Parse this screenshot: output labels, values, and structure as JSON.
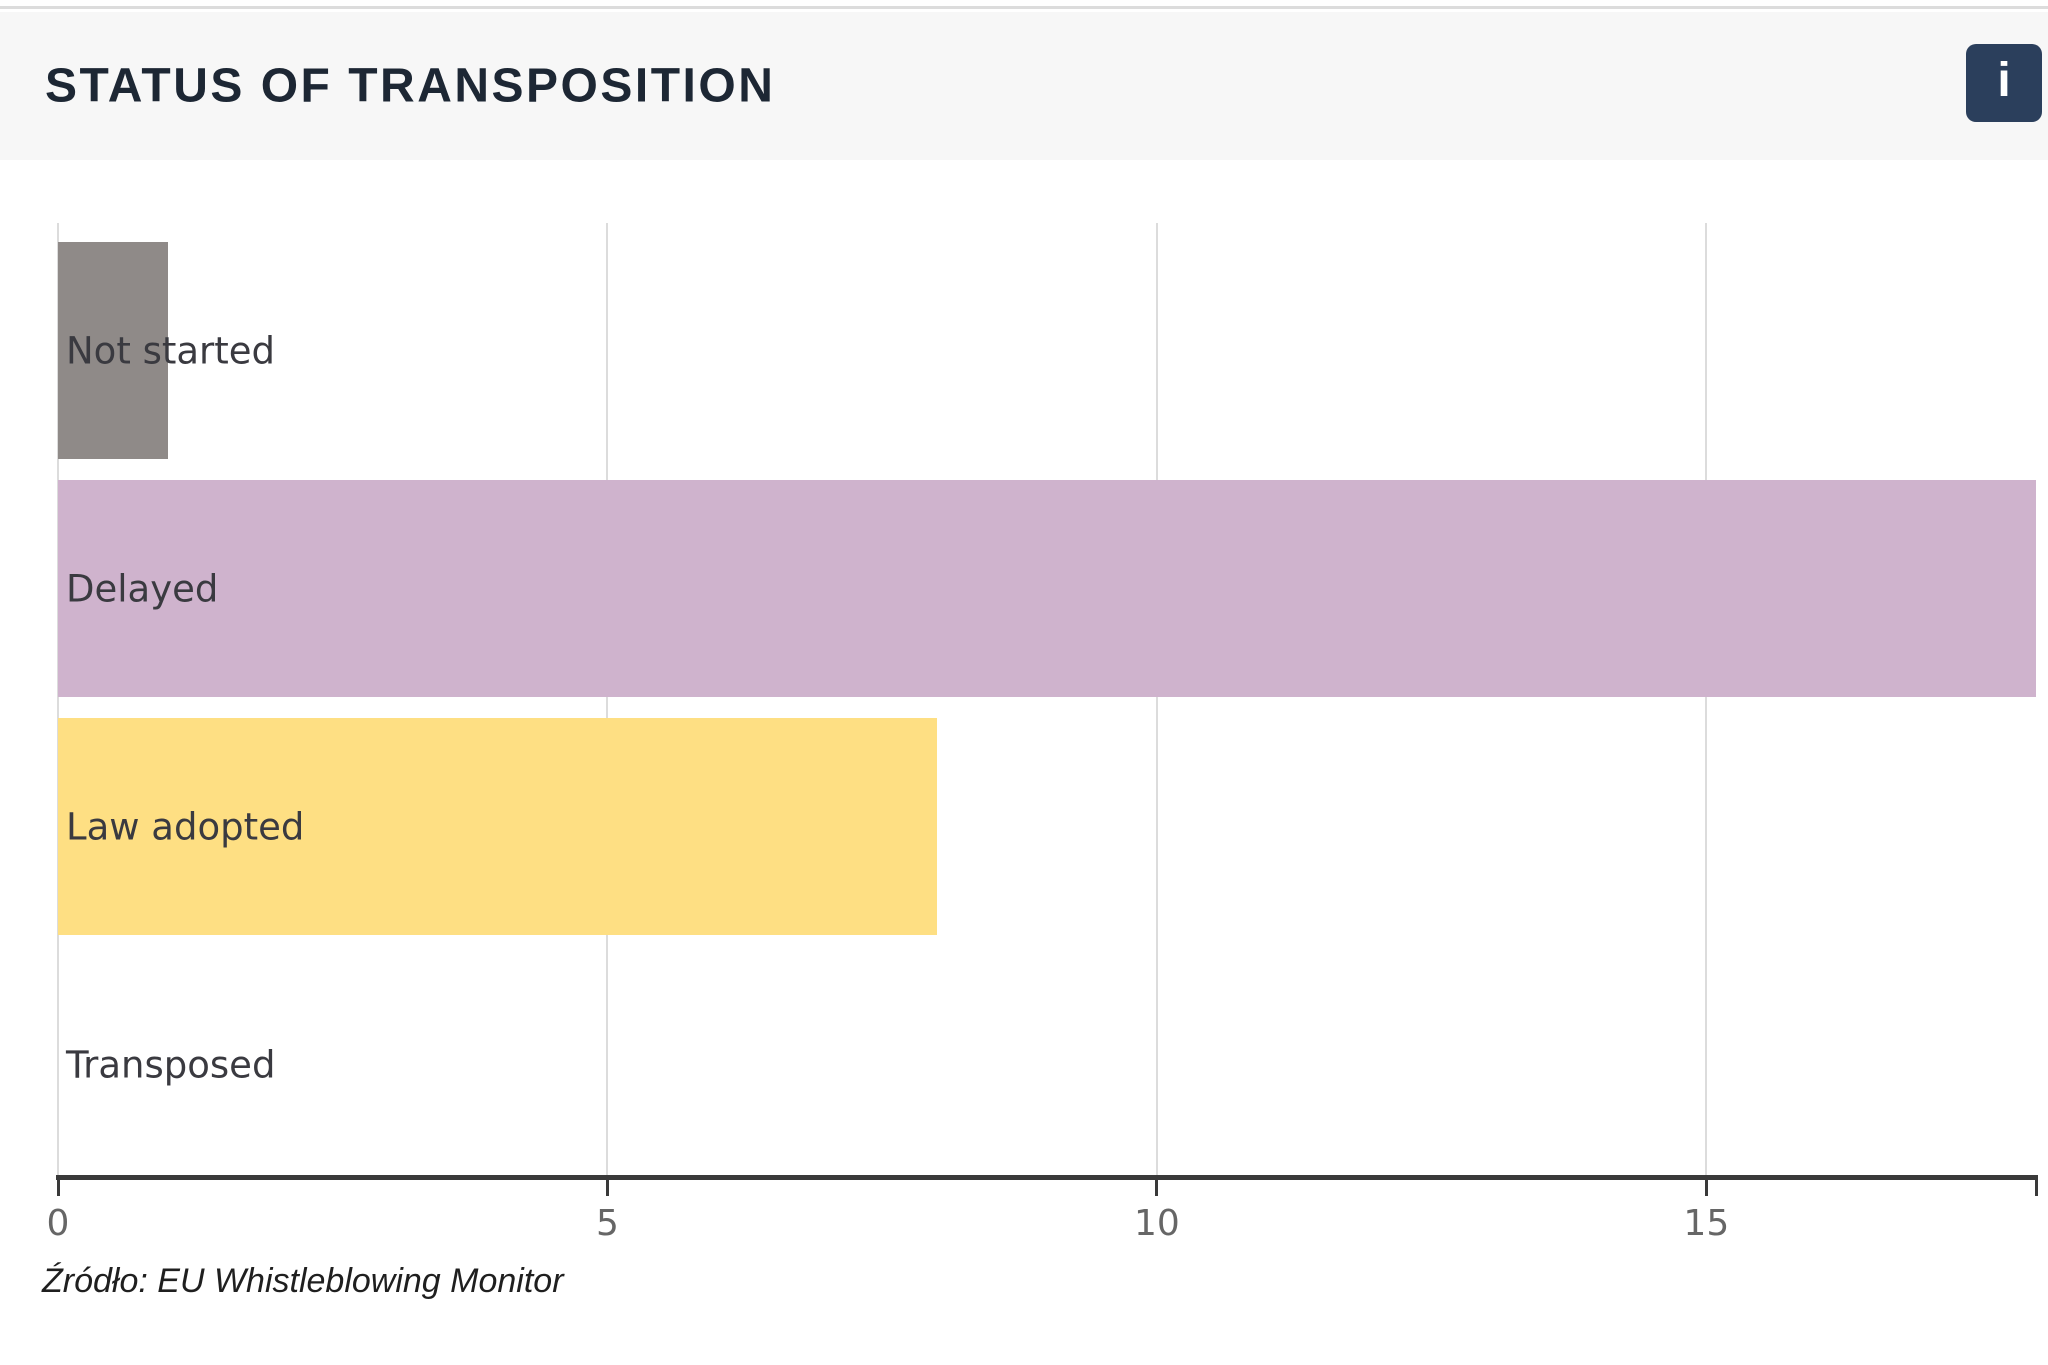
{
  "header": {
    "title": "STATUS OF TRANSPOSITION",
    "info_icon_glyph": "i"
  },
  "footer": {
    "source_note": "Źródło: EU Whistleblowing Monitor"
  },
  "colors": {
    "header_bg": "#f7f7f7",
    "info_button_bg": "#2b3f5c",
    "axis": "#3a3a3a",
    "gridline": "#dcdcdc",
    "tick_label": "#666666",
    "bar_label": "#3a3a40",
    "not_started_bar": "#8f8a88",
    "delayed_bar": "#cfb3cd",
    "law_adopted_bar": "#fedf83"
  },
  "chart_data": {
    "type": "bar",
    "orientation": "horizontal",
    "title": "STATUS OF TRANSPOSITION",
    "categories": [
      "Not started",
      "Delayed",
      "Law adopted",
      "Transposed"
    ],
    "values": [
      1,
      18,
      8,
      0
    ],
    "bar_colors": [
      "#8f8a88",
      "#cfb3cd",
      "#fedf83",
      null
    ],
    "x_ticks": [
      0,
      5,
      10,
      15
    ],
    "xlim": [
      0,
      18
    ],
    "xlabel": "",
    "ylabel": "",
    "grid": "vertical-gridlines",
    "legend": "none",
    "labels_inside_rows": true
  }
}
